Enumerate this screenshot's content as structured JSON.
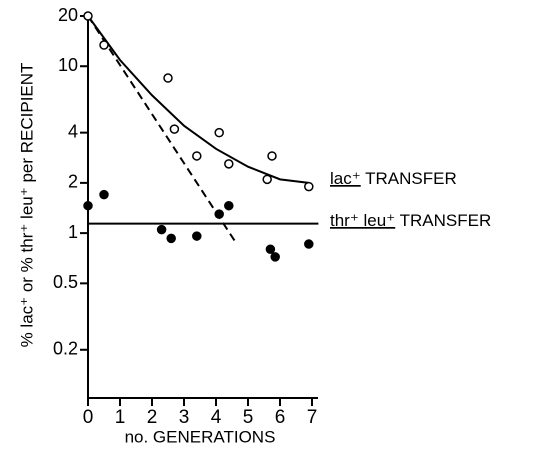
{
  "chart_data": {
    "type": "scatter",
    "ylabel": "% lac⁺ or % thr⁺ leu⁺ per RECIPIENT",
    "xlabel": "no. GENERATIONS",
    "log_y": true,
    "xlim": [
      0,
      7
    ],
    "xticks": [
      0,
      1,
      2,
      3,
      4,
      5,
      6,
      7
    ],
    "ylim": [
      0.1,
      20
    ],
    "yticks": [
      0.2,
      0.5,
      1,
      2,
      4,
      10,
      20
    ],
    "color": "#000000",
    "series": [
      {
        "kind": "points",
        "marker": "open",
        "x": [
          0,
          0.5,
          2.5,
          2.7,
          3.4,
          4.1,
          4.4,
          5.6,
          5.75,
          6.9
        ],
        "values": [
          20,
          13.4,
          8.5,
          4.2,
          2.9,
          4.0,
          2.6,
          2.1,
          2.9,
          1.9
        ]
      },
      {
        "kind": "points",
        "marker": "filled",
        "x": [
          0,
          0.5,
          2.3,
          2.6,
          3.4,
          4.1,
          4.4,
          5.7,
          5.85,
          6.9
        ],
        "values": [
          1.46,
          1.7,
          1.05,
          0.93,
          0.96,
          1.3,
          1.46,
          0.8,
          0.72,
          0.86
        ]
      },
      {
        "kind": "line",
        "dash": false,
        "x": [
          0,
          1,
          2,
          3,
          4,
          5,
          6,
          6.9
        ],
        "values": [
          20,
          10.9,
          6.7,
          4.4,
          3.2,
          2.5,
          2.1,
          2.0
        ]
      },
      {
        "kind": "line",
        "dash": true,
        "x": [
          0,
          4.65
        ],
        "values": [
          20,
          0.86
        ]
      },
      {
        "kind": "line",
        "dash": false,
        "x": [
          0,
          7.2
        ],
        "values": [
          1.14,
          1.14
        ]
      }
    ],
    "annotations": [
      {
        "genes": "lac⁺",
        "text": "TRANSFER"
      },
      {
        "genes": "thr⁺ leu⁺",
        "text": "TRANSFER"
      }
    ]
  }
}
